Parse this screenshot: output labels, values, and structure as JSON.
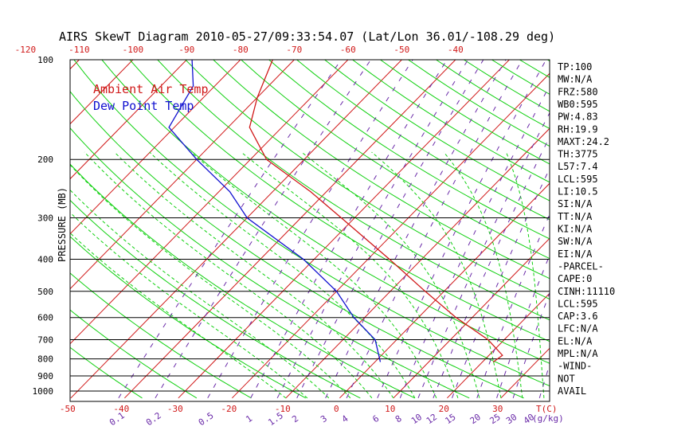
{
  "colors": {
    "isotherm": "#d01818",
    "dry_adiabat": "#10d010",
    "moist_adiabat": "#10d010",
    "mixing_ratio": "#6a2aa8",
    "temperature": "#d01818",
    "dewpoint": "#1010d0",
    "frame": "#000000",
    "tick_label": "#d01818",
    "mix_label": "#6a2aa8"
  },
  "chart_data": {
    "type": "line",
    "title": "AIRS SkewT Diagram 2010-05-27/09:33:54.07 (Lat/Lon 36.01/-108.29 deg)",
    "ylabel": "PRESSURE (MB)",
    "y_scale": "log",
    "ylim": [
      1050,
      100
    ],
    "bottom_axis_label": "T(C)",
    "mix_axis_label": "(g/kg)",
    "pressure_ticks": [
      "100",
      "200",
      "300",
      "400",
      "500",
      "600",
      "700",
      "800",
      "900",
      "1000"
    ],
    "top_temp_ticks": [
      "-120",
      "-110",
      "-100",
      "-90",
      "-80",
      "-70",
      "-60",
      "-50",
      "-40"
    ],
    "bottom_temp_ticks": [
      "-50",
      "-40",
      "-30",
      "-20",
      "-10",
      "0",
      "10",
      "20",
      "30"
    ],
    "mixing_ratio_ticks": [
      "0.1",
      "0.2",
      "0.5",
      "1",
      "1.5",
      "2",
      "3",
      "4",
      "6",
      "8",
      "10",
      "12",
      "15",
      "20",
      "25",
      "30",
      "40"
    ],
    "legend": [
      "Ambient Air Temp",
      "Dew Point Temp"
    ],
    "legend_placement": "top-left",
    "series": [
      {
        "name": "Ambient Air Temp",
        "points": [
          {
            "p": 817,
            "t": 22.0
          },
          {
            "p": 780,
            "t": 22.5
          },
          {
            "p": 700,
            "t": 17.0
          },
          {
            "p": 600,
            "t": 7.0
          },
          {
            "p": 500,
            "t": -3.5
          },
          {
            "p": 400,
            "t": -16.0
          },
          {
            "p": 300,
            "t": -32.5
          },
          {
            "p": 250,
            "t": -43.0
          },
          {
            "p": 200,
            "t": -57.0
          },
          {
            "p": 160,
            "t": -66.0
          },
          {
            "p": 130,
            "t": -70.0
          },
          {
            "p": 100,
            "t": -74.0
          }
        ]
      },
      {
        "name": "Dew Point Temp",
        "points": [
          {
            "p": 817,
            "t": 1.0
          },
          {
            "p": 700,
            "t": -4.0
          },
          {
            "p": 600,
            "t": -12.0
          },
          {
            "p": 500,
            "t": -20.0
          },
          {
            "p": 400,
            "t": -32.0
          },
          {
            "p": 300,
            "t": -50.0
          },
          {
            "p": 250,
            "t": -58.0
          },
          {
            "p": 200,
            "t": -70.0
          },
          {
            "p": 160,
            "t": -81.0
          },
          {
            "p": 120,
            "t": -84.0
          },
          {
            "p": 100,
            "t": -89.0
          }
        ]
      }
    ],
    "indices": [
      "TP:100",
      "MW:N/A",
      "FRZ:580",
      "WB0:595",
      "PW:4.83",
      "RH:19.9",
      "MAXT:24.2",
      "TH:3775",
      "L57:7.4",
      "LCL:595",
      "LI:10.5",
      "SI:N/A",
      "TT:N/A",
      "KI:N/A",
      "SW:N/A",
      "EI:N/A",
      "-PARCEL-",
      "CAPE:0",
      "CINH:11110",
      "LCL:595",
      "CAP:3.6",
      "LFC:N/A",
      "EL:N/A",
      "MPL:N/A",
      "-WIND-",
      "NOT",
      "AVAIL"
    ]
  }
}
